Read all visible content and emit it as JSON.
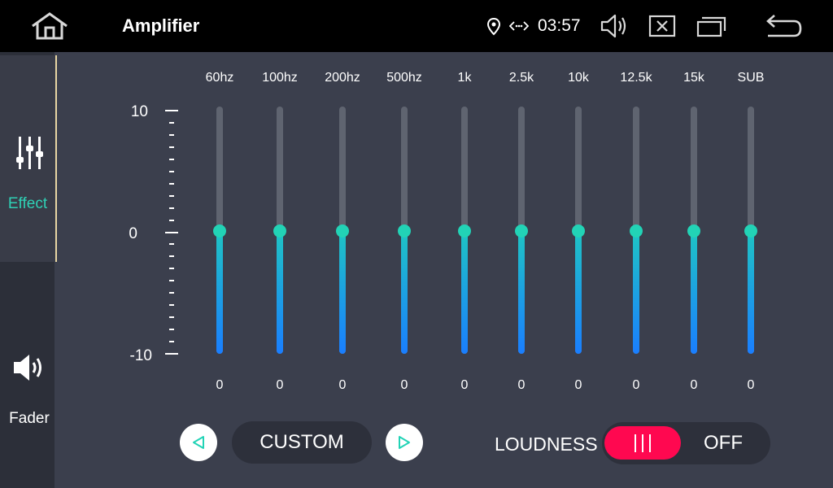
{
  "statusbar": {
    "title": "Amplifier",
    "time": "03:57",
    "icons": [
      "home-icon",
      "location-pin-icon",
      "link-arrows-icon",
      "volume-icon",
      "close-box-icon",
      "window-icon",
      "back-icon"
    ]
  },
  "sidebar": {
    "items": [
      {
        "label": "Effect",
        "icon": "equalizer-sliders-icon",
        "active": true
      },
      {
        "label": "Fader",
        "icon": "speaker-icon",
        "active": false
      }
    ]
  },
  "scale": {
    "max": "10",
    "mid": "0",
    "min": "-10"
  },
  "equalizer": {
    "range": [
      -10,
      10
    ],
    "bands": [
      {
        "label": "60hz",
        "value": 0,
        "display": "0"
      },
      {
        "label": "100hz",
        "value": 0,
        "display": "0"
      },
      {
        "label": "200hz",
        "value": 0,
        "display": "0"
      },
      {
        "label": "500hz",
        "value": 0,
        "display": "0"
      },
      {
        "label": "1k",
        "value": 0,
        "display": "0"
      },
      {
        "label": "2.5k",
        "value": 0,
        "display": "0"
      },
      {
        "label": "10k",
        "value": 0,
        "display": "0"
      },
      {
        "label": "12.5k",
        "value": 0,
        "display": "0"
      },
      {
        "label": "15k",
        "value": 0,
        "display": "0"
      },
      {
        "label": "SUB",
        "value": 0,
        "display": "0"
      }
    ]
  },
  "preset": {
    "name": "CUSTOM"
  },
  "loudness": {
    "label": "LOUDNESS",
    "state": "OFF"
  },
  "colors": {
    "accent": "#22d3b6",
    "toggle": "#ff0850",
    "active_tab_text": "#2fd1b5"
  }
}
